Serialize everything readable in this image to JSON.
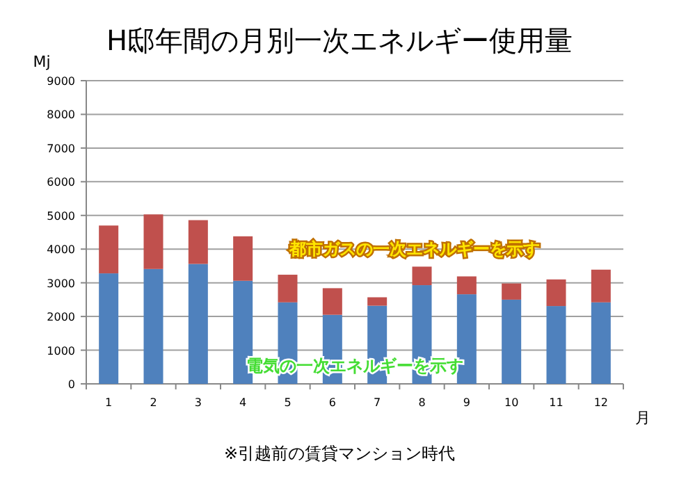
{
  "chart_data": {
    "type": "bar",
    "stacked": true,
    "title": "H邸年間の月別一次エネルギー使用量",
    "ylabel": "Mj",
    "xlabel": "月",
    "categories": [
      "1",
      "2",
      "3",
      "4",
      "5",
      "6",
      "7",
      "8",
      "9",
      "10",
      "11",
      "12"
    ],
    "series": [
      {
        "name": "電気の一次エネルギーを示す",
        "color": "#4f81bd",
        "values": [
          3280,
          3410,
          3560,
          3060,
          2420,
          2050,
          2320,
          2930,
          2660,
          2500,
          2310,
          2420
        ]
      },
      {
        "name": "都市ガスの一次エネルギーを示す",
        "color": "#c0504d",
        "values": [
          1420,
          1620,
          1300,
          1320,
          820,
          790,
          250,
          550,
          530,
          480,
          790,
          970
        ]
      }
    ],
    "ylim": [
      0,
      9000
    ],
    "yticks": [
      0,
      1000,
      2000,
      3000,
      4000,
      5000,
      6000,
      7000,
      8000,
      9000
    ],
    "grid": "y",
    "annotations": [
      "※引越前の賃貸マンション時代"
    ]
  }
}
